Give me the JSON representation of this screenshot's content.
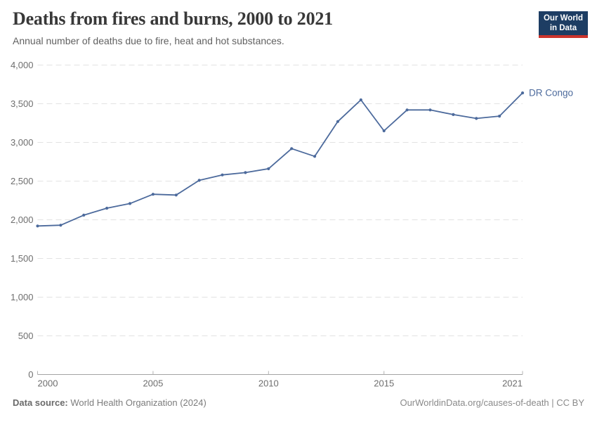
{
  "header": {
    "title": "Deaths from fires and burns, 2000 to 2021",
    "subtitle": "Annual number of deaths due to fire, heat and hot substances."
  },
  "logo": {
    "line1": "Our World",
    "line2": "in Data",
    "bg_color": "#1d3d63",
    "accent_color": "#cb342c"
  },
  "chart_data": {
    "type": "line",
    "title": "Deaths from fires and burns, 2000 to 2021",
    "x": [
      2000,
      2001,
      2002,
      2003,
      2004,
      2005,
      2006,
      2007,
      2008,
      2009,
      2010,
      2011,
      2012,
      2013,
      2014,
      2015,
      2016,
      2017,
      2018,
      2019,
      2020,
      2021
    ],
    "series": [
      {
        "name": "DR Congo",
        "color": "#4c6a9c",
        "values": [
          1920,
          1930,
          2060,
          2150,
          2210,
          2330,
          2320,
          2510,
          2580,
          2610,
          2660,
          2920,
          2820,
          3270,
          3550,
          3150,
          3420,
          3420,
          3360,
          3310,
          3340,
          3640
        ]
      }
    ],
    "ylim": [
      0,
      4000
    ],
    "yticks": [
      0,
      500,
      1000,
      1500,
      2000,
      2500,
      3000,
      3500,
      4000
    ],
    "xticks": [
      2000,
      2005,
      2010,
      2015,
      2021
    ],
    "xlabel": "",
    "ylabel": "",
    "grid": "horizontal-dashed",
    "legend_position": "end-of-line-label"
  },
  "footer": {
    "source_label": "Data source:",
    "source_value": "World Health Organization (2024)",
    "credit": "OurWorldinData.org/causes-of-death | CC BY"
  },
  "colors": {
    "grid": "#e2e2e2",
    "axis": "#a3a3a3",
    "tick": "#b3b3b3",
    "tick_label": "#6e6e6e",
    "series": "#4c6a9c"
  }
}
